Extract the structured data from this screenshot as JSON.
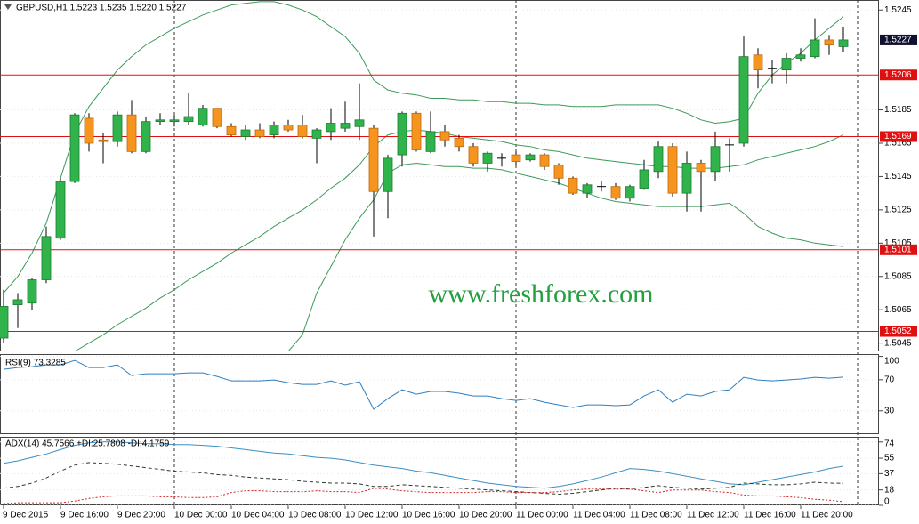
{
  "chart_data": [
    {
      "type": "candlestick",
      "title": "GBPUSD,H1 1.5223 1.5235 1.5220 1.5227",
      "watermark": "www.freshforex.com",
      "categories": [
        "9 Dec 2015",
        null,
        null,
        null,
        "9 Dec 16:00",
        null,
        null,
        null,
        "9 Dec 20:00",
        null,
        null,
        null,
        "10 Dec 00:00",
        null,
        null,
        null,
        "10 Dec 04:00",
        null,
        null,
        null,
        "10 Dec 08:00",
        null,
        null,
        null,
        "10 Dec 12:00",
        null,
        null,
        null,
        "10 Dec 16:00",
        null,
        null,
        null,
        "10 Dec 20:00",
        null,
        null,
        null,
        "11 Dec 00:00",
        null,
        null,
        null,
        "11 Dec 04:00",
        null,
        null,
        null,
        "11 Dec 08:00",
        null,
        null,
        null,
        "11 Dec 12:00",
        null,
        null,
        null,
        "11 Dec 16:00",
        null,
        null,
        null,
        "11 Dec 20:00",
        null,
        null,
        null
      ],
      "open": [
        1.5048,
        1.5068,
        1.5069,
        1.5083,
        1.5108,
        1.5142,
        1.518,
        1.5167,
        1.5166,
        1.5182,
        1.516,
        1.5178,
        1.5178,
        1.5178,
        1.5176,
        1.5186,
        1.5175,
        1.5169,
        1.5173,
        1.517,
        1.5176,
        1.5176,
        1.5168,
        1.5172,
        1.5174,
        1.5175,
        1.5174,
        1.5136,
        1.5158,
        1.5183,
        1.516,
        1.5172,
        1.5168,
        1.5163,
        1.5153,
        1.5156,
        1.5158,
        1.5155,
        1.5158,
        1.5152,
        1.5144,
        1.5135,
        1.5139,
        1.5139,
        1.5132,
        1.5138,
        1.5148,
        1.5163,
        1.5135,
        1.5153,
        1.5148,
        1.5164,
        1.5165,
        1.5218,
        1.521,
        1.5209,
        1.5216,
        1.5217,
        1.5227,
        1.5223
      ],
      "high": [
        1.5077,
        1.5075,
        1.5084,
        1.5115,
        1.5144,
        1.5183,
        1.5183,
        1.5171,
        1.5184,
        1.5191,
        1.5181,
        1.5183,
        1.5182,
        1.5195,
        1.5188,
        1.5186,
        1.5177,
        1.5176,
        1.5177,
        1.5178,
        1.5179,
        1.5182,
        1.5174,
        1.5186,
        1.519,
        1.5201,
        1.5176,
        1.5158,
        1.5184,
        1.5184,
        1.5184,
        1.5176,
        1.517,
        1.5165,
        1.516,
        1.5159,
        1.516,
        1.5159,
        1.5159,
        1.5153,
        1.5145,
        1.5141,
        1.5142,
        1.5141,
        1.514,
        1.5155,
        1.5166,
        1.5165,
        1.516,
        1.5155,
        1.5172,
        1.5168,
        1.5229,
        1.5222,
        1.5215,
        1.5219,
        1.5222,
        1.524,
        1.523,
        1.5235
      ],
      "low": [
        1.5045,
        1.5054,
        1.5065,
        1.5081,
        1.5107,
        1.5141,
        1.516,
        1.5153,
        1.5163,
        1.5159,
        1.5159,
        1.5176,
        1.5175,
        1.5176,
        1.5175,
        1.5174,
        1.5169,
        1.5167,
        1.5168,
        1.5168,
        1.5172,
        1.5168,
        1.5153,
        1.5167,
        1.5172,
        1.5167,
        1.5109,
        1.512,
        1.5151,
        1.516,
        1.5159,
        1.5163,
        1.516,
        1.5151,
        1.5148,
        1.5151,
        1.5152,
        1.5154,
        1.5149,
        1.514,
        1.5134,
        1.5132,
        1.5136,
        1.5131,
        1.513,
        1.5137,
        1.5144,
        1.5133,
        1.5124,
        1.5124,
        1.5142,
        1.5148,
        1.5163,
        1.5198,
        1.5201,
        1.5201,
        1.5214,
        1.5216,
        1.5218,
        1.522
      ],
      "close": [
        1.5067,
        1.5071,
        1.5083,
        1.5109,
        1.5142,
        1.5182,
        1.5165,
        1.5166,
        1.5182,
        1.516,
        1.5178,
        1.5179,
        1.5179,
        1.5181,
        1.5186,
        1.5175,
        1.517,
        1.5173,
        1.5169,
        1.5176,
        1.5173,
        1.5169,
        1.5173,
        1.5177,
        1.5177,
        1.5179,
        1.5136,
        1.5156,
        1.5183,
        1.5161,
        1.5172,
        1.5167,
        1.5163,
        1.5153,
        1.5159,
        1.5156,
        1.5154,
        1.5158,
        1.5151,
        1.5144,
        1.5135,
        1.514,
        1.5139,
        1.5132,
        1.5139,
        1.5149,
        1.5163,
        1.5135,
        1.5153,
        1.5148,
        1.5163,
        1.5164,
        1.5217,
        1.5209,
        1.521,
        1.5216,
        1.5218,
        1.5227,
        1.5224,
        1.5227
      ],
      "up_color": "#2fb34a",
      "down_color": "#f7941d",
      "bands": [
        {
          "color": "#3c9a5a",
          "values": [
            1.5075,
            1.5085,
            1.5099,
            1.5117,
            1.5144,
            1.5171,
            1.5187,
            1.5198,
            1.5209,
            1.5217,
            1.5224,
            1.5229,
            1.5234,
            1.5238,
            1.5242,
            1.5245,
            1.5248,
            1.5249,
            1.525,
            1.525,
            1.5248,
            1.5245,
            1.5241,
            1.5235,
            1.5229,
            1.5219,
            1.5203,
            1.5197,
            1.5195,
            1.5194,
            1.5192,
            1.5192,
            1.5191,
            1.5191,
            1.519,
            1.519,
            1.5189,
            1.5189,
            1.5188,
            1.5188,
            1.5187,
            1.5187,
            1.5187,
            1.5188,
            1.5188,
            1.5188,
            1.5188,
            1.5186,
            1.5183,
            1.5179,
            1.5177,
            1.5178,
            1.518,
            1.5195,
            1.5206,
            1.5213,
            1.5219,
            1.5227,
            1.5234,
            1.5241
          ]
        },
        {
          "color": "#3c9a5a",
          "values": [
            null,
            null,
            null,
            null,
            null,
            1.504,
            1.5045,
            1.505,
            1.5056,
            1.5061,
            1.5066,
            1.5072,
            1.5077,
            1.5083,
            1.5088,
            1.5093,
            1.5099,
            1.5104,
            1.5109,
            1.5115,
            1.512,
            1.5125,
            1.5131,
            1.5138,
            1.5144,
            1.5152,
            1.5163,
            1.517,
            1.5172,
            1.5173,
            1.5172,
            1.5171,
            1.5169,
            1.5168,
            1.5167,
            1.5166,
            1.5164,
            1.5163,
            1.5161,
            1.516,
            1.5158,
            1.5156,
            1.5155,
            1.5154,
            1.5153,
            1.5152,
            1.5151,
            1.5151,
            1.515,
            1.515,
            1.515,
            1.5151,
            1.5152,
            1.5155,
            1.5157,
            1.5159,
            1.5161,
            1.5163,
            1.5166,
            1.517
          ]
        },
        {
          "color": "#3c9a5a",
          "values": [
            null,
            null,
            null,
            null,
            null,
            null,
            null,
            null,
            null,
            null,
            null,
            null,
            null,
            null,
            null,
            null,
            null,
            null,
            null,
            null,
            1.504,
            1.505,
            1.5075,
            1.5091,
            1.5107,
            1.512,
            1.5131,
            1.5147,
            1.5152,
            1.5153,
            1.5152,
            1.5151,
            1.5151,
            1.515,
            1.515,
            1.5149,
            1.5147,
            1.5145,
            1.5143,
            1.5141,
            1.5138,
            1.5135,
            1.5132,
            1.513,
            1.5129,
            1.5128,
            1.5127,
            1.5127,
            1.5127,
            1.5127,
            1.5128,
            1.5129,
            1.5123,
            1.5115,
            1.5111,
            1.5108,
            1.5107,
            1.5105,
            1.5104,
            1.5103
          ]
        }
      ],
      "hlines": [
        {
          "value": 1.5206,
          "color": "#e01010"
        },
        {
          "value": 1.5169,
          "color": "#e01010"
        },
        {
          "value": 1.5101,
          "color": "#e01010"
        },
        {
          "value": 1.5052,
          "color": "#e01010"
        }
      ],
      "current_price": 1.5227,
      "ylim": [
        1.504,
        1.5251
      ],
      "yticks": [
        1.5245,
        1.5185,
        1.5165,
        1.5145,
        1.5125,
        1.5105,
        1.5085,
        1.5065,
        1.5045
      ],
      "grid": true
    },
    {
      "type": "line",
      "title": "RSI(9) 73.3285",
      "series": [
        {
          "color": "#2f7fc1",
          "style": "solid",
          "values": [
            83.4,
            85.7,
            86.9,
            89.1,
            89.1,
            94.9,
            85.7,
            85.7,
            89.1,
            75.4,
            77.7,
            77.7,
            77.7,
            78.9,
            78.9,
            74.3,
            68.6,
            68.6,
            68.6,
            69.7,
            66.3,
            64.0,
            64.0,
            68.6,
            62.9,
            67.4,
            32.0,
            45.7,
            57.1,
            51.4,
            54.9,
            54.9,
            52.6,
            49.1,
            49.1,
            45.7,
            43.4,
            45.7,
            41.1,
            37.7,
            34.3,
            37.7,
            37.7,
            36.6,
            37.7,
            49.1,
            57.1,
            41.1,
            51.4,
            49.1,
            54.9,
            57.1,
            73.1,
            69.7,
            68.6,
            69.7,
            70.9,
            73.1,
            72.0,
            73.3285
          ]
        }
      ],
      "ylim": [
        0,
        103
      ],
      "yticks": [
        30,
        70,
        100
      ]
    },
    {
      "type": "line",
      "title": "ADX(14) 45.7566 +DI:25.7808 -DI:4.1759",
      "series": [
        {
          "color": "#3b8fc4",
          "style": "solid",
          "values": [
            49,
            52,
            56,
            60,
            65,
            70,
            73,
            74,
            74,
            73,
            72,
            72,
            71,
            71,
            70,
            69,
            67,
            65,
            63,
            61,
            60,
            58,
            56,
            55,
            53,
            50,
            47,
            45,
            43,
            40,
            38,
            35,
            32,
            29,
            26,
            24,
            22,
            21,
            20,
            22,
            25,
            29,
            33,
            38,
            43,
            42,
            40,
            37,
            34,
            31,
            28,
            25,
            24,
            27,
            30,
            33,
            36,
            39,
            43,
            45.7566
          ]
        },
        {
          "color": "#2a3a2a",
          "style": "dashed",
          "values": [
            20,
            22,
            26,
            32,
            40,
            47,
            50,
            49,
            48,
            46,
            44,
            42,
            40,
            39,
            38,
            36,
            35,
            33,
            32,
            31,
            30,
            28,
            27,
            26,
            26,
            25,
            22,
            22,
            24,
            23,
            22,
            21,
            20,
            19,
            18,
            17,
            16,
            15,
            14,
            13,
            14,
            16,
            18,
            20,
            19,
            21,
            23,
            21,
            20,
            19,
            20,
            21,
            26,
            25,
            24,
            24,
            25,
            27,
            26,
            25.7808
          ]
        },
        {
          "color": "#d02020",
          "style": "dotted",
          "values": [
            2,
            3,
            3,
            3,
            3,
            5,
            8,
            10,
            11,
            11,
            11,
            10,
            10,
            9,
            9,
            10,
            15,
            17,
            17,
            16,
            16,
            16,
            17,
            16,
            16,
            15,
            20,
            19,
            17,
            16,
            15,
            15,
            15,
            15,
            16,
            16,
            15,
            15,
            15,
            16,
            18,
            19,
            19,
            19,
            19,
            17,
            15,
            18,
            18,
            18,
            16,
            15,
            12,
            11,
            11,
            10,
            9,
            7,
            6,
            4.1759
          ]
        }
      ],
      "ylim": [
        0,
        80
      ],
      "yticks": [
        0,
        18,
        37,
        55,
        74
      ]
    }
  ]
}
